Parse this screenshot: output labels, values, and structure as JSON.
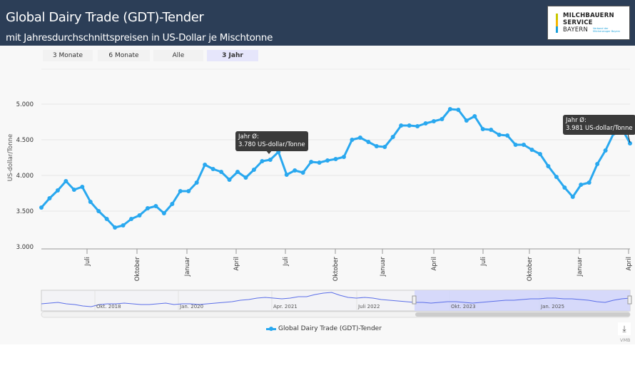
{
  "header": {
    "title": "Global Dairy Trade (GDT)-Tender",
    "subtitle": "mit Jahresdurchschnittspreisen in US-Dollar je Mischtonne",
    "logo_lines": [
      "MILCHBAUERN",
      "SERVICE",
      "BAYERN"
    ],
    "logo_tagline": "Verband der Milcherzeuger Bayern"
  },
  "range_selector": {
    "buttons": [
      "3 Monate",
      "6 Monate",
      "Alle",
      "3 Jahr"
    ],
    "selected": "3 Jahr"
  },
  "tooltips": [
    {
      "line1": "Jahr Ø:",
      "line2": "3.780 US-dollar/Tonne"
    },
    {
      "line1": "Jahr Ø:",
      "line2": "3.981 US-dollar/Tonne"
    }
  ],
  "legend": {
    "label": "Global Dairy Trade (GDT)-Tender"
  },
  "export": {
    "icon": "download-icon",
    "credit": "VMB"
  },
  "navigator": {
    "labels": [
      "Okt. 2018",
      "Jan. 2020",
      "Apr. 2021",
      "Juli 2022",
      "Okt. 2023",
      "Jan. 2025"
    ]
  },
  "colors": {
    "series": "#29a8ef",
    "header": "#2c3e57",
    "navigator_fill": "#d0d4fa",
    "navigator_line": "#5b6ee8"
  },
  "chart_data": {
    "type": "line",
    "title": "Global Dairy Trade (GDT)-Tender",
    "xlabel": "",
    "ylabel": "US-dollar/Tonne",
    "ylim": [
      3000,
      5000
    ],
    "yticks": [
      "3.000",
      "3.500",
      "4.000",
      "4.500",
      "5.000"
    ],
    "ytick_values": [
      3000,
      3500,
      4000,
      4500,
      5000
    ],
    "grid": true,
    "legend_position": "bottom-center",
    "xtick_labels": [
      "Juli",
      "Oktober",
      "Januar",
      "April",
      "Juli",
      "Oktober",
      "Januar",
      "April",
      "Juli",
      "Oktober",
      "Januar",
      "April"
    ],
    "series": [
      {
        "name": "Global Dairy Trade (GDT)-Tender",
        "values": [
          3550,
          3680,
          3790,
          3920,
          3800,
          3840,
          3630,
          3500,
          3390,
          3270,
          3300,
          3390,
          3440,
          3540,
          3570,
          3470,
          3600,
          3780,
          3780,
          3900,
          4150,
          4090,
          4050,
          3940,
          4050,
          3970,
          4080,
          4200,
          4220,
          4330,
          4010,
          4070,
          4040,
          4190,
          4180,
          4210,
          4230,
          4260,
          4500,
          4530,
          4470,
          4410,
          4400,
          4540,
          4700,
          4700,
          4690,
          4730,
          4760,
          4790,
          4930,
          4920,
          4770,
          4830,
          4650,
          4640,
          4570,
          4560,
          4430,
          4430,
          4360,
          4300,
          4130,
          3980,
          3830,
          3700,
          3870,
          3900,
          4160,
          4350,
          4590,
          4660,
          4450
        ]
      }
    ],
    "annotations": [
      "Jahr Ø: 3.780 US-dollar/Tonne",
      "Jahr Ø: 3.981 US-dollar/Tonne"
    ]
  }
}
